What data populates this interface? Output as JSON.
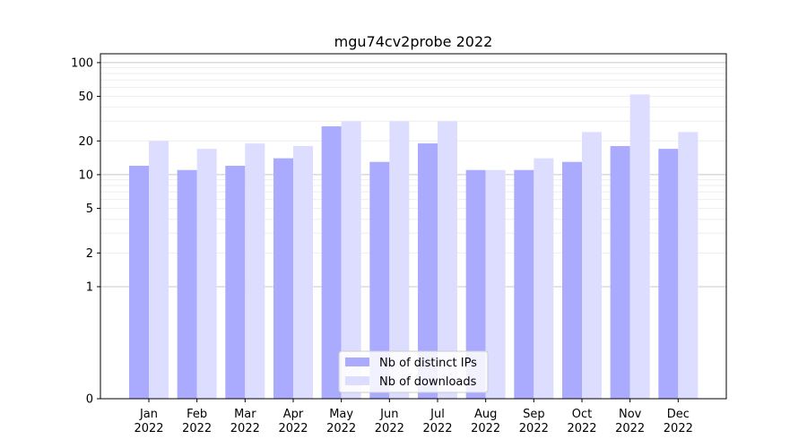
{
  "chart_data": {
    "type": "bar",
    "title": "mgu74cv2probe 2022",
    "xlabel": "",
    "ylabel": "",
    "y_scale": "symlog",
    "ylim": [
      0,
      120
    ],
    "y_ticks": [
      0,
      1,
      2,
      5,
      10,
      20,
      50,
      100
    ],
    "grid": "horizontal, major and minor",
    "legend_position": "bottom-center",
    "categories": [
      {
        "month": "Jan",
        "year": "2022"
      },
      {
        "month": "Feb",
        "year": "2022"
      },
      {
        "month": "Mar",
        "year": "2022"
      },
      {
        "month": "Apr",
        "year": "2022"
      },
      {
        "month": "May",
        "year": "2022"
      },
      {
        "month": "Jun",
        "year": "2022"
      },
      {
        "month": "Jul",
        "year": "2022"
      },
      {
        "month": "Aug",
        "year": "2022"
      },
      {
        "month": "Sep",
        "year": "2022"
      },
      {
        "month": "Oct",
        "year": "2022"
      },
      {
        "month": "Nov",
        "year": "2022"
      },
      {
        "month": "Dec",
        "year": "2022"
      }
    ],
    "series": [
      {
        "name": "Nb of distinct IPs",
        "color": "#aaaaff",
        "values": [
          12,
          11,
          12,
          14,
          27,
          13,
          19,
          11,
          11,
          13,
          18,
          17
        ]
      },
      {
        "name": "Nb of downloads",
        "color": "#ddddff",
        "values": [
          20,
          17,
          19,
          18,
          30,
          30,
          30,
          11,
          14,
          24,
          52,
          24
        ]
      }
    ]
  }
}
